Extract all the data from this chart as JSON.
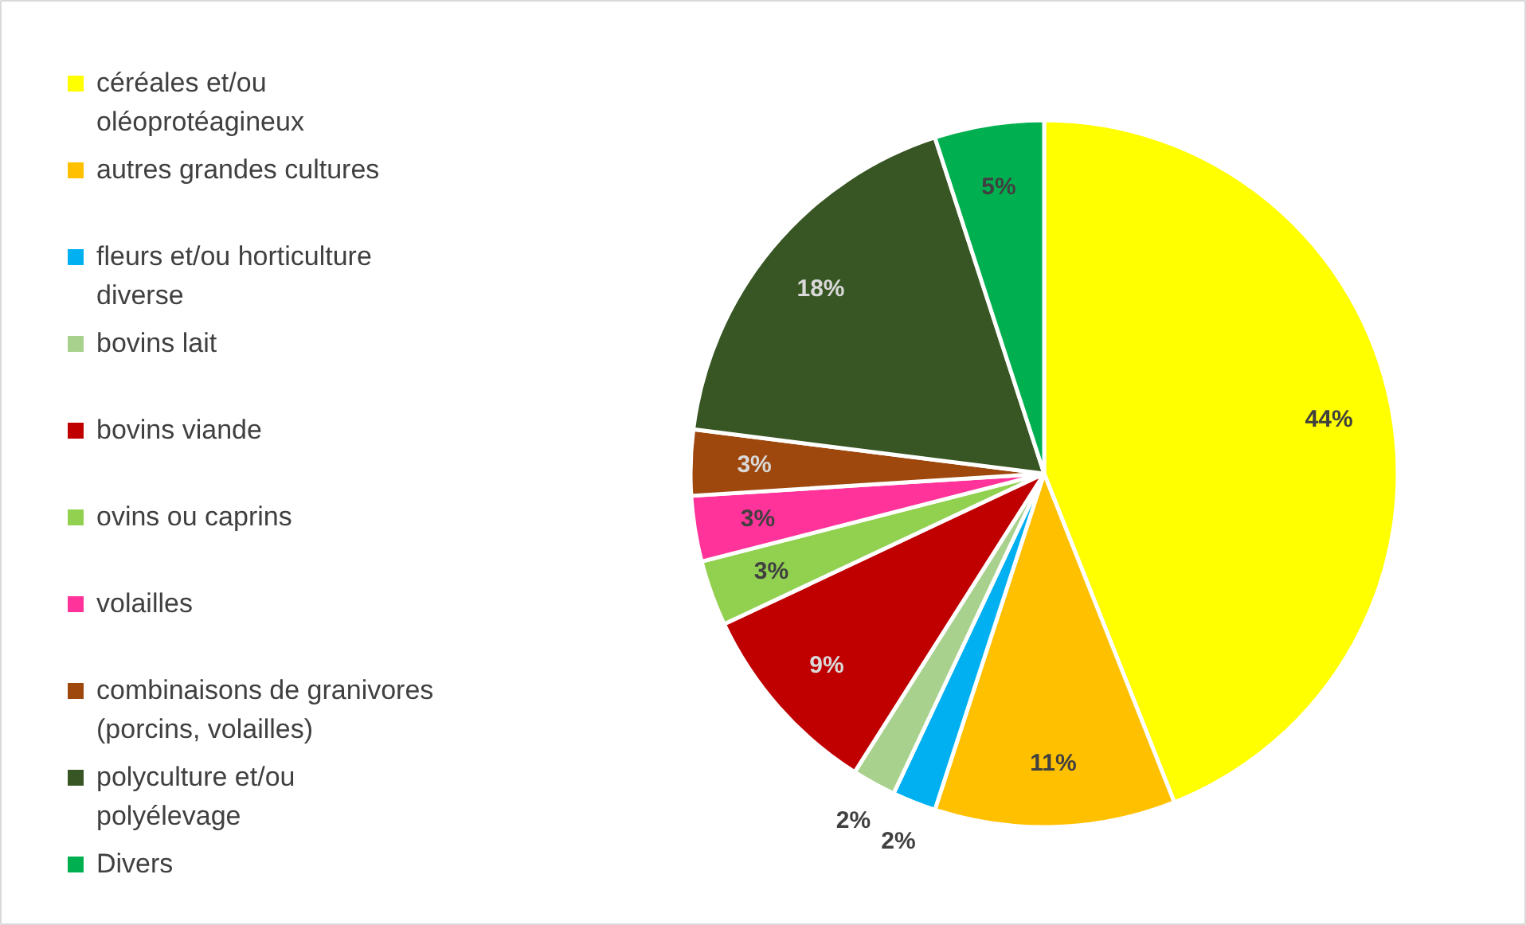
{
  "chart_data": {
    "type": "pie",
    "categories": [
      "céréales et/ou oléoprotéagineux",
      "autres grandes cultures",
      "fleurs et/ou horticulture diverse",
      "bovins lait",
      "bovins viande",
      "ovins ou caprins",
      "volailles",
      "combinaisons de granivores (porcins, volailles)",
      "polyculture et/ou polyélevage",
      "Divers"
    ],
    "values": [
      44,
      11,
      2,
      2,
      9,
      3,
      3,
      3,
      18,
      5
    ],
    "colors": [
      "#ffff00",
      "#ffc000",
      "#00b0f0",
      "#a9d18e",
      "#c00000",
      "#92d050",
      "#ff3399",
      "#9e480e",
      "#375623",
      "#00b050"
    ],
    "value_labels": [
      "44%",
      "11%",
      "2%",
      "2%",
      "9%",
      "3%",
      "3%",
      "3%",
      "18%",
      "5%"
    ],
    "legend": "left"
  }
}
